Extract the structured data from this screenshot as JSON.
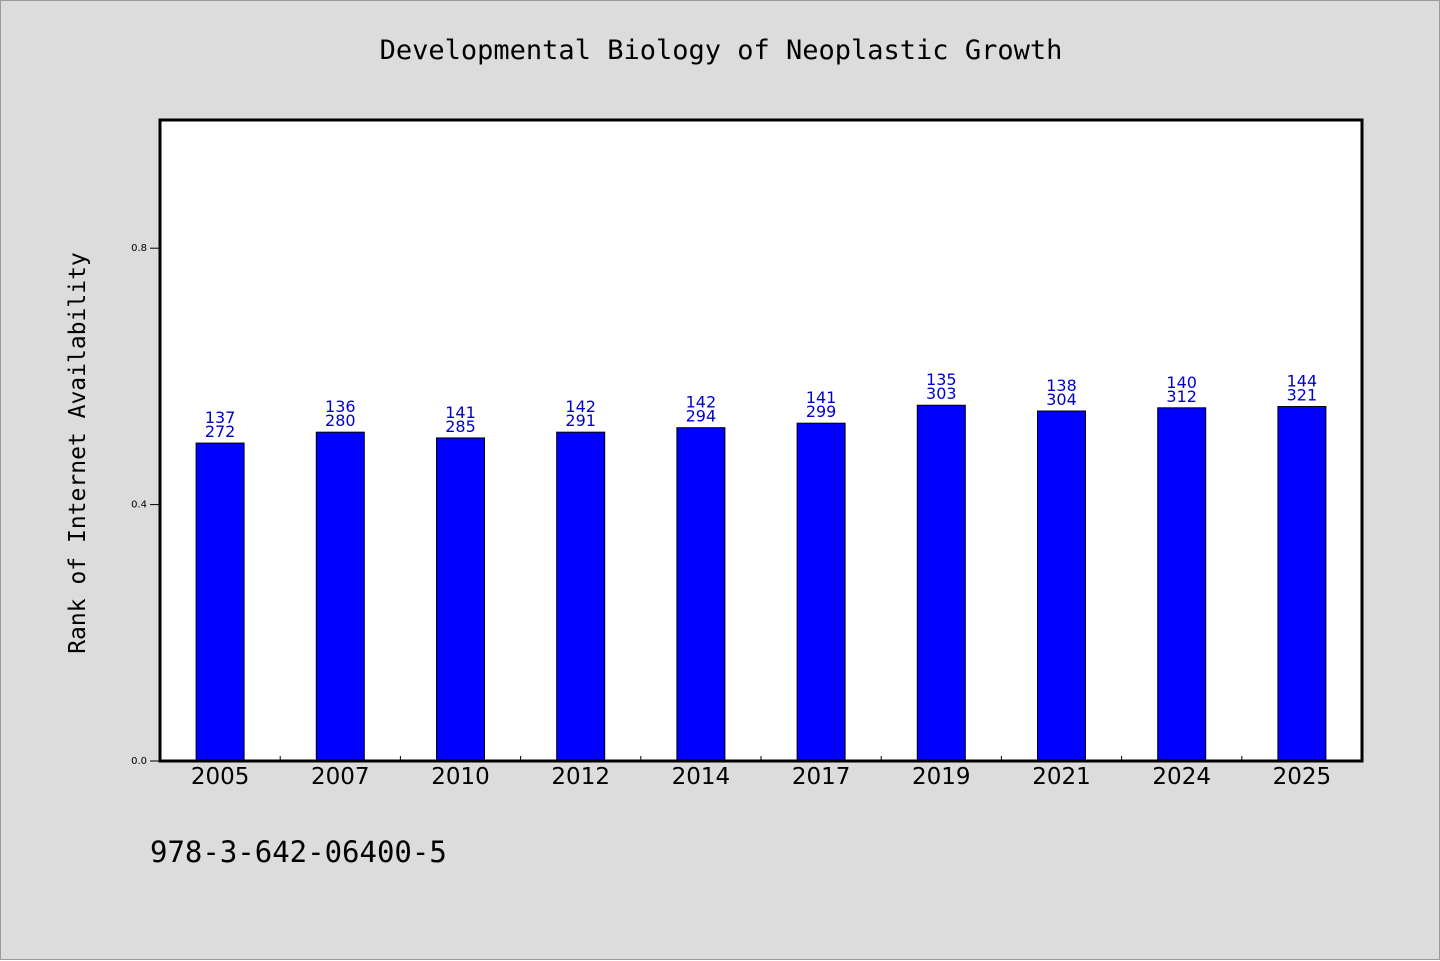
{
  "footnote": "978-3-642-06400-5",
  "colors": {
    "bar": "#0000ff",
    "data_label": "#0000cc",
    "background": "#dcdcdc",
    "plot_background": "#ffffff"
  },
  "chart_data": {
    "type": "bar",
    "title": "Developmental Biology of Neoplastic Growth",
    "xlabel": "",
    "ylabel": "Rank of Internet Availability",
    "ylim": [
      0,
      1.0
    ],
    "yticks": [
      "0.0",
      "0.4",
      "0.8"
    ],
    "grid": false,
    "legend": "none",
    "categories": [
      "2005",
      "2007",
      "2010",
      "2012",
      "2014",
      "2017",
      "2019",
      "2021",
      "2024",
      "2025"
    ],
    "values": [
      0.496,
      0.513,
      0.504,
      0.513,
      0.52,
      0.527,
      0.555,
      0.546,
      0.551,
      0.553
    ],
    "data_labels": {
      "top": [
        "137",
        "136",
        "141",
        "142",
        "142",
        "141",
        "135",
        "138",
        "140",
        "144"
      ],
      "bottom": [
        "272",
        "280",
        "285",
        "291",
        "294",
        "299",
        "303",
        "304",
        "312",
        "321"
      ]
    }
  }
}
